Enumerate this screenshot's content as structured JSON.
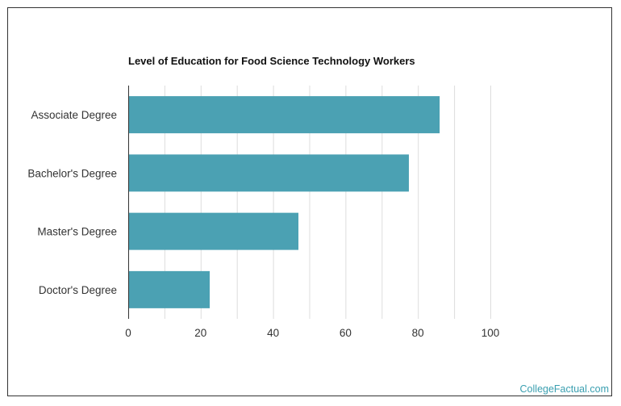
{
  "chart_data": {
    "type": "bar",
    "orientation": "horizontal",
    "title": "Level of Education for Food Science Technology Workers",
    "categories": [
      "Associate Degree",
      "Bachelor's Degree",
      "Master's Degree",
      "Doctor's Degree"
    ],
    "values": [
      86,
      77.5,
      47,
      22.5
    ],
    "xlim": [
      0,
      100
    ],
    "xticks": [
      0,
      20,
      40,
      60,
      80,
      100
    ],
    "xlabel": "",
    "ylabel": "",
    "grid": true,
    "legend": "none",
    "bar_color": "#4ba1b3",
    "grid_color": "#dddddd"
  },
  "watermark": "CollegeFactual.com"
}
